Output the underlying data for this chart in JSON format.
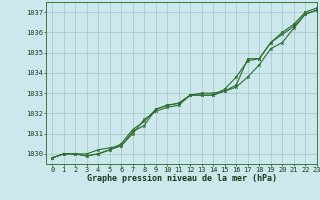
{
  "title": "Graphe pression niveau de la mer (hPa)",
  "background_color": "#cce8ec",
  "grid_color": "#aacccc",
  "line_color": "#2d6e2d",
  "xlim": [
    -0.5,
    23
  ],
  "ylim": [
    1029.5,
    1037.5
  ],
  "yticks": [
    1030,
    1031,
    1032,
    1033,
    1034,
    1035,
    1036,
    1037
  ],
  "xticks": [
    0,
    1,
    2,
    3,
    4,
    5,
    6,
    7,
    8,
    9,
    10,
    11,
    12,
    13,
    14,
    15,
    16,
    17,
    18,
    19,
    20,
    21,
    22,
    23
  ],
  "series1": [
    1029.8,
    1030.0,
    1030.0,
    1030.0,
    1030.2,
    1030.3,
    1030.4,
    1031.0,
    1031.7,
    1032.1,
    1032.3,
    1032.4,
    1032.9,
    1033.0,
    1033.0,
    1033.1,
    1033.3,
    1033.8,
    1034.4,
    1035.2,
    1035.5,
    1036.2,
    1036.9,
    1037.1
  ],
  "series2": [
    1029.8,
    1030.0,
    1030.0,
    1029.9,
    1030.0,
    1030.2,
    1030.5,
    1031.2,
    1031.6,
    1032.2,
    1032.4,
    1032.5,
    1032.9,
    1032.9,
    1032.9,
    1033.2,
    1033.8,
    1034.6,
    1034.7,
    1035.5,
    1035.9,
    1036.3,
    1036.9,
    1037.1
  ],
  "series3": [
    1029.8,
    1030.0,
    1030.0,
    1029.9,
    1030.0,
    1030.2,
    1030.4,
    1031.1,
    1031.4,
    1032.2,
    1032.4,
    1032.5,
    1032.9,
    1032.9,
    1032.9,
    1033.1,
    1033.4,
    1034.7,
    1034.7,
    1035.5,
    1036.0,
    1036.4,
    1037.0,
    1037.2
  ],
  "tick_fontsize": 5.0,
  "xlabel_fontsize": 6.0,
  "marker_size": 1.8,
  "line_width": 0.8
}
